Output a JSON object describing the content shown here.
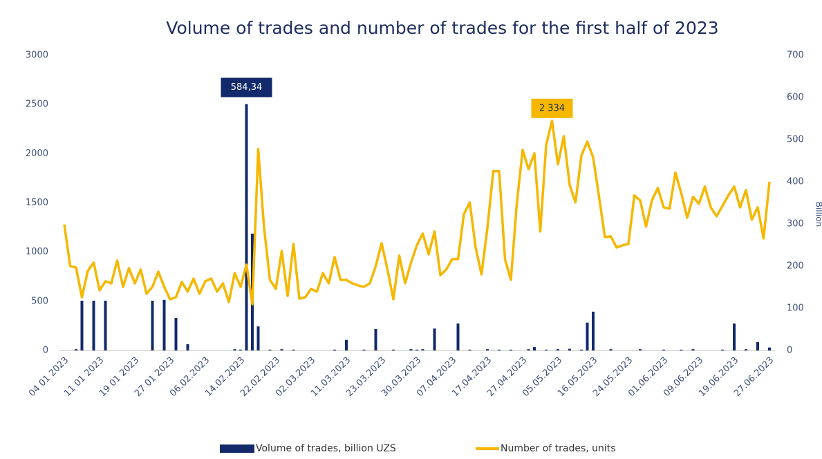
{
  "chart_data": {
    "type": "combo",
    "title": "Volume of trades and number of trades for the first half of 2023",
    "y2label": "Billion",
    "categories": [
      "04 01 2023",
      null,
      null,
      null,
      null,
      null,
      "11 01 2023",
      null,
      null,
      null,
      null,
      null,
      "19 01 2023",
      null,
      null,
      null,
      null,
      null,
      "27 01 2023",
      null,
      null,
      null,
      null,
      null,
      "06.02.2023",
      null,
      null,
      null,
      null,
      null,
      "14.02.2023",
      null,
      null,
      null,
      null,
      null,
      "22.02.2023",
      null,
      null,
      null,
      null,
      null,
      "02.03.2023",
      null,
      null,
      null,
      null,
      null,
      "11.03.2023",
      null,
      null,
      null,
      null,
      null,
      "23.03.2023",
      null,
      null,
      null,
      null,
      null,
      "30.03.2023",
      null,
      null,
      null,
      null,
      null,
      "07.04.2023",
      null,
      null,
      null,
      null,
      null,
      "17.04.2023",
      null,
      null,
      null,
      null,
      null,
      "27.04.2023",
      null,
      null,
      null,
      null,
      null,
      "05.05.2023",
      null,
      null,
      null,
      null,
      null,
      "16.05.2023",
      null,
      null,
      null,
      null,
      null,
      "24.05.2023",
      null,
      null,
      null,
      null,
      null,
      "01.06.2023",
      null,
      null,
      null,
      null,
      null,
      "09.06.2023",
      null,
      null,
      null,
      null,
      null,
      "19.06.2023",
      null,
      null,
      null,
      null,
      null,
      "27.06.2023"
    ],
    "series": [
      {
        "name": "Volume of trades, billion UZS",
        "type": "bar",
        "axis": "y2",
        "color": "#12296b",
        "values": [
          0,
          0,
          3,
          118,
          0,
          118,
          0,
          118,
          0,
          0,
          0,
          0,
          0,
          0,
          0,
          118,
          0,
          120,
          0,
          77,
          0,
          15,
          0,
          0,
          0,
          0,
          0,
          0,
          0,
          3,
          2,
          584.34,
          277,
          57,
          0,
          2,
          0,
          3,
          0,
          2,
          0,
          0,
          0,
          0,
          0,
          0,
          2,
          0,
          25,
          0,
          0,
          2,
          0,
          51,
          0,
          0,
          2,
          0,
          0,
          3,
          2,
          3,
          0,
          52,
          0,
          0,
          0,
          64,
          0,
          2,
          0,
          0,
          3,
          0,
          2,
          0,
          2,
          0,
          0,
          3,
          8,
          0,
          2,
          0,
          3,
          0,
          4,
          0,
          2,
          66,
          92,
          0,
          0,
          3,
          0,
          0,
          0,
          0,
          3,
          0,
          0,
          0,
          2,
          0,
          0,
          2,
          0,
          3,
          0,
          0,
          0,
          0,
          2,
          0,
          64,
          0,
          3,
          0,
          20,
          0,
          7
        ],
        "value_labels": [
          null,
          null,
          null,
          null,
          null,
          null,
          null,
          null,
          null,
          null,
          null,
          null,
          null,
          null,
          null,
          null,
          null,
          null,
          null,
          null,
          null,
          null,
          null,
          null,
          null,
          null,
          null,
          null,
          null,
          null,
          null,
          "584,34",
          null,
          null,
          null,
          null,
          null,
          null,
          null,
          null,
          null,
          null,
          null,
          null,
          null,
          null,
          null,
          null,
          null,
          null,
          null,
          null,
          null,
          null,
          null,
          null,
          null,
          null,
          null,
          null,
          null,
          null,
          null,
          null,
          null,
          null,
          null,
          null,
          null,
          null,
          null,
          null,
          null,
          null,
          null,
          null,
          null,
          null,
          null,
          null,
          null,
          null,
          null,
          null,
          null,
          null,
          null,
          null,
          null,
          null,
          null,
          null,
          null,
          null,
          null,
          null,
          null,
          null,
          null,
          null,
          null,
          null,
          null,
          null,
          null,
          null,
          null,
          null,
          null,
          null,
          null,
          null,
          null,
          null,
          null,
          null,
          null,
          null,
          null,
          null,
          null
        ]
      },
      {
        "name": "Number of trades, units",
        "type": "line",
        "color": "#f5b700",
        "values": [
          1280,
          858,
          844,
          541,
          809,
          893,
          612,
          703,
          682,
          914,
          647,
          837,
          682,
          823,
          576,
          647,
          801,
          647,
          520,
          541,
          696,
          598,
          731,
          576,
          703,
          731,
          598,
          682,
          492,
          787,
          647,
          872,
          471,
          2046,
          1244,
          717,
          626,
          1012,
          555,
          1083,
          527,
          541,
          626,
          598,
          787,
          682,
          949,
          717,
          717,
          682,
          661,
          647,
          682,
          858,
          1090,
          823,
          520,
          963,
          682,
          893,
          1069,
          1188,
          977,
          1209,
          766,
          823,
          928,
          928,
          1385,
          1504,
          1047,
          773,
          1244,
          1821,
          1821,
          928,
          717,
          1490,
          2039,
          1842,
          2004,
          1209,
          2088,
          2334,
          1891,
          2179,
          1680,
          1504,
          1982,
          2123,
          1961,
          1561,
          1153,
          1160,
          1047,
          1069,
          1083,
          1575,
          1525,
          1258,
          1525,
          1652,
          1455,
          1441,
          1807,
          1596,
          1350,
          1561,
          1490,
          1666,
          1455,
          1364,
          1469,
          1575,
          1666,
          1455,
          1631,
          1329,
          1455,
          1139,
          1715
        ],
        "value_labels": [
          null,
          null,
          null,
          null,
          null,
          null,
          null,
          null,
          null,
          null,
          null,
          null,
          null,
          null,
          null,
          null,
          null,
          null,
          null,
          null,
          null,
          null,
          null,
          null,
          null,
          null,
          null,
          null,
          null,
          null,
          null,
          null,
          null,
          null,
          null,
          null,
          null,
          null,
          null,
          null,
          null,
          null,
          null,
          null,
          null,
          null,
          null,
          null,
          null,
          null,
          null,
          null,
          null,
          null,
          null,
          null,
          null,
          null,
          null,
          null,
          null,
          null,
          null,
          null,
          null,
          null,
          null,
          null,
          null,
          null,
          null,
          null,
          null,
          null,
          null,
          null,
          null,
          null,
          null,
          null,
          null,
          null,
          null,
          "2 334",
          null,
          null,
          null,
          null,
          null,
          null,
          null,
          null,
          null,
          null,
          null,
          null,
          null,
          null,
          null,
          null,
          null,
          null,
          null,
          null,
          null,
          null,
          null,
          null,
          null,
          null,
          null,
          null,
          null,
          null,
          null,
          null,
          null,
          null,
          null,
          null,
          null
        ]
      }
    ],
    "ylim": [
      0,
      3000
    ],
    "yticks": [
      0,
      500,
      1000,
      1500,
      2000,
      2500,
      3000
    ],
    "y2lim": [
      0,
      700
    ],
    "y2ticks": [
      0,
      100,
      200,
      300,
      400,
      500,
      600,
      700
    ],
    "grid": false,
    "legend": "bottom"
  }
}
